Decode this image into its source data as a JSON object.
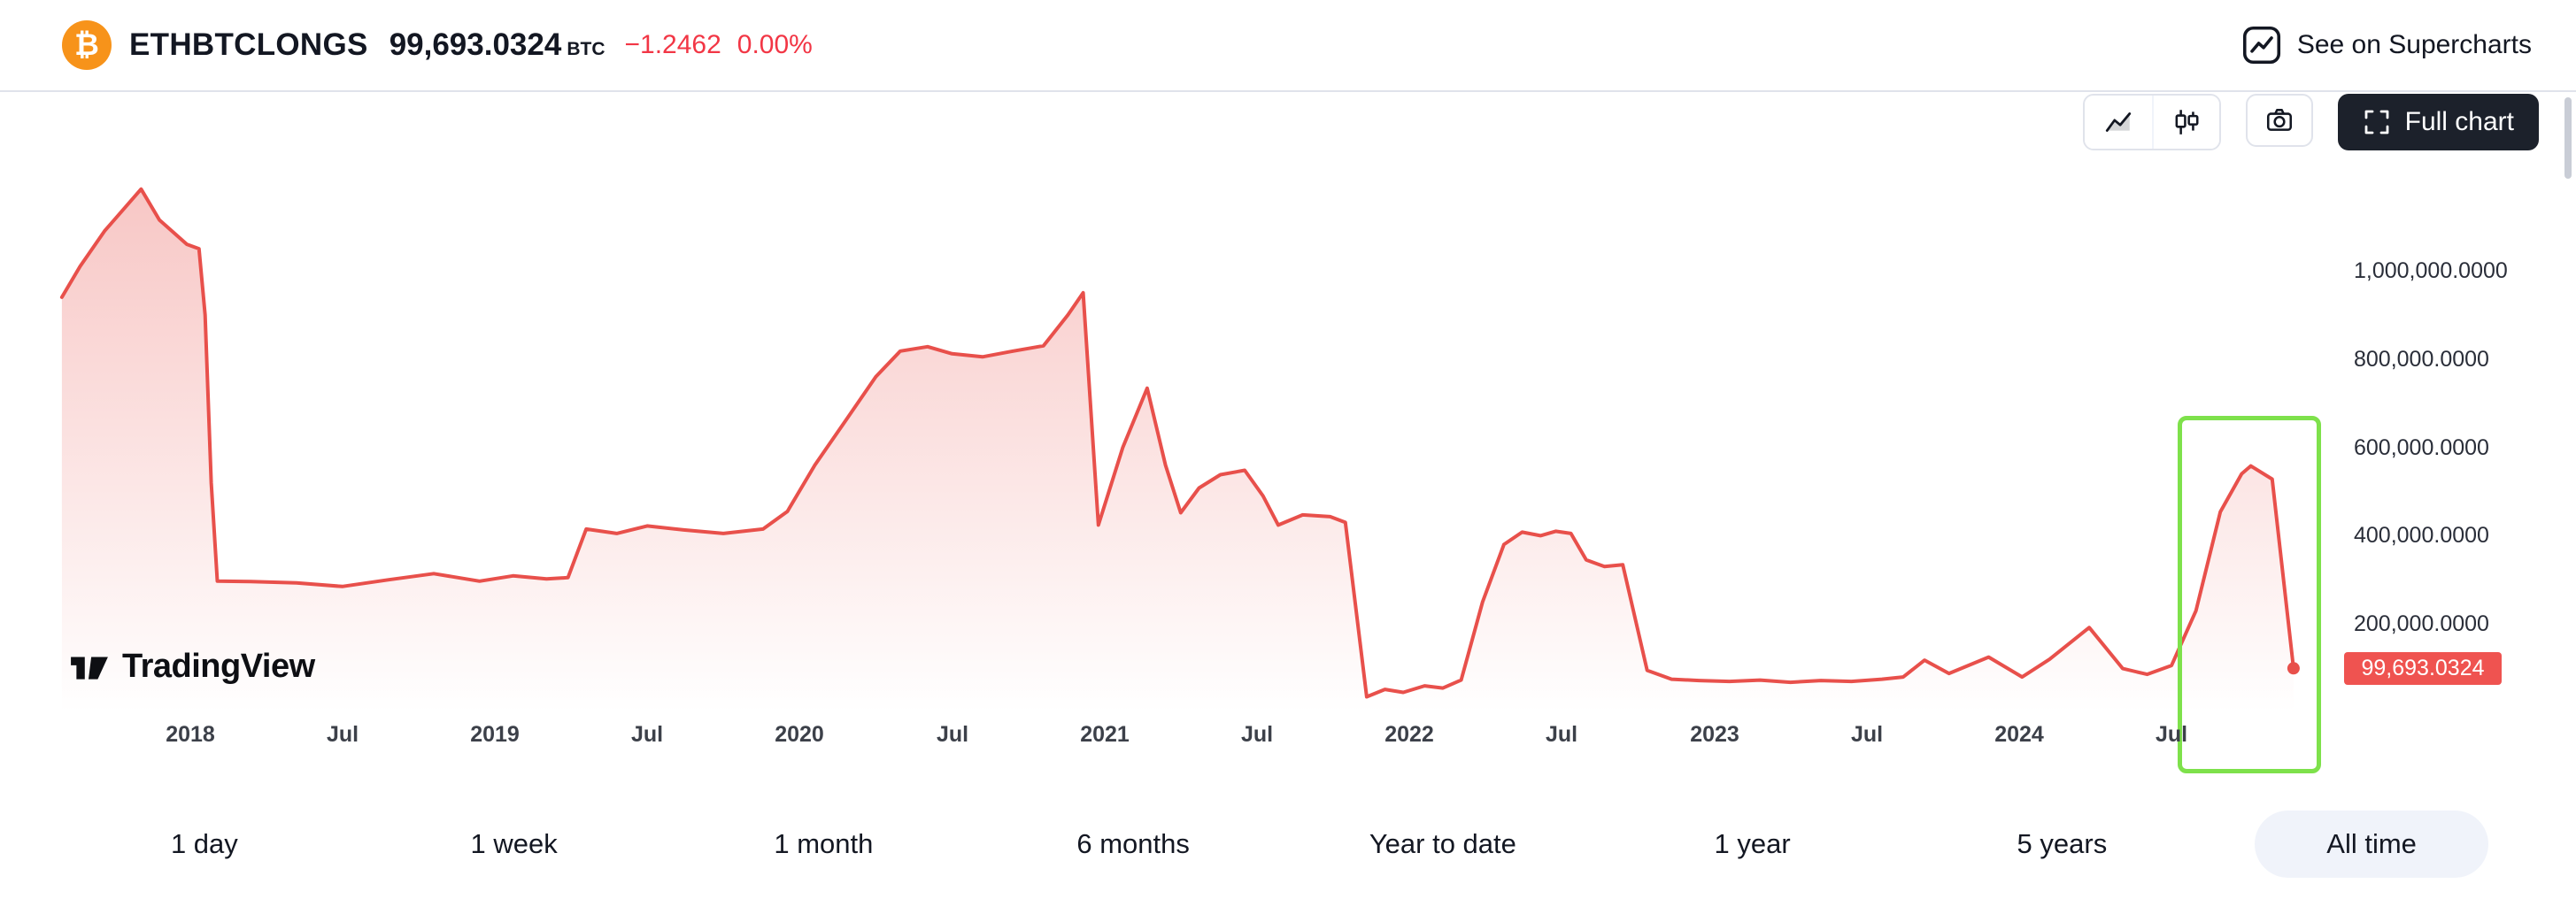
{
  "header": {
    "symbol": "ETHBTCLONGS",
    "price": "99,693.0324",
    "unit": "BTC",
    "change": "−1.2462",
    "change_pct": "0.00%",
    "supercharts_label": "See on Supercharts"
  },
  "toolbar": {
    "full_chart_label": "Full chart"
  },
  "watermark": {
    "label": "TradingView"
  },
  "colors": {
    "negative": "#f23645",
    "line": "#e8504b",
    "badge": "#ef5350",
    "highlight": "#7ee14b",
    "brand_orange": "#f7931a"
  },
  "chart_data": {
    "type": "area",
    "title": "ETHBTCLONGS long positions",
    "xlabel": "",
    "ylabel": "",
    "xlim": [
      2017.55,
      2025.05
    ],
    "ylim": [
      0,
      1400000
    ],
    "grid": false,
    "legend": "none",
    "last_price": 99693.0324,
    "last_price_label": "99,693.0324",
    "y_ticks": [
      {
        "value": 1000000,
        "label": "1,000,000.0000"
      },
      {
        "value": 800000,
        "label": "800,000.0000"
      },
      {
        "value": 600000,
        "label": "600,000.0000"
      },
      {
        "value": 400000,
        "label": "400,000.0000"
      },
      {
        "value": 200000,
        "label": "200,000.0000"
      }
    ],
    "x_ticks": [
      {
        "t": 2018.0,
        "label": "2018"
      },
      {
        "t": 2018.5,
        "label": "Jul"
      },
      {
        "t": 2019.0,
        "label": "2019"
      },
      {
        "t": 2019.5,
        "label": "Jul"
      },
      {
        "t": 2020.0,
        "label": "2020"
      },
      {
        "t": 2020.5,
        "label": "Jul"
      },
      {
        "t": 2021.0,
        "label": "2021"
      },
      {
        "t": 2021.5,
        "label": "Jul"
      },
      {
        "t": 2022.0,
        "label": "2022"
      },
      {
        "t": 2022.5,
        "label": "Jul"
      },
      {
        "t": 2023.0,
        "label": "2023"
      },
      {
        "t": 2023.5,
        "label": "Jul"
      },
      {
        "t": 2024.0,
        "label": "2024"
      },
      {
        "t": 2024.5,
        "label": "Jul"
      }
    ],
    "points": [
      [
        2017.58,
        940000
      ],
      [
        2017.64,
        1010000
      ],
      [
        2017.72,
        1090000
      ],
      [
        2017.84,
        1185000
      ],
      [
        2017.9,
        1115000
      ],
      [
        2017.99,
        1060000
      ],
      [
        2018.03,
        1050000
      ],
      [
        2018.05,
        900000
      ],
      [
        2018.07,
        520000
      ],
      [
        2018.09,
        297000
      ],
      [
        2018.2,
        296000
      ],
      [
        2018.35,
        293000
      ],
      [
        2018.5,
        285000
      ],
      [
        2018.65,
        300000
      ],
      [
        2018.8,
        314000
      ],
      [
        2018.95,
        297000
      ],
      [
        2019.06,
        309000
      ],
      [
        2019.17,
        302000
      ],
      [
        2019.24,
        305000
      ],
      [
        2019.3,
        415000
      ],
      [
        2019.4,
        405000
      ],
      [
        2019.5,
        422000
      ],
      [
        2019.62,
        413000
      ],
      [
        2019.75,
        405000
      ],
      [
        2019.88,
        415000
      ],
      [
        2019.96,
        455000
      ],
      [
        2020.05,
        560000
      ],
      [
        2020.15,
        660000
      ],
      [
        2020.25,
        760000
      ],
      [
        2020.33,
        818000
      ],
      [
        2020.42,
        828000
      ],
      [
        2020.5,
        812000
      ],
      [
        2020.6,
        805000
      ],
      [
        2020.7,
        818000
      ],
      [
        2020.8,
        830000
      ],
      [
        2020.88,
        900000
      ],
      [
        2020.93,
        950000
      ],
      [
        2020.98,
        424000
      ],
      [
        2021.06,
        600000
      ],
      [
        2021.14,
        734000
      ],
      [
        2021.2,
        560000
      ],
      [
        2021.25,
        452000
      ],
      [
        2021.31,
        508000
      ],
      [
        2021.38,
        538000
      ],
      [
        2021.46,
        548000
      ],
      [
        2021.52,
        490000
      ],
      [
        2021.57,
        424000
      ],
      [
        2021.65,
        447000
      ],
      [
        2021.74,
        443000
      ],
      [
        2021.79,
        430000
      ],
      [
        2021.86,
        35000
      ],
      [
        2021.92,
        52000
      ],
      [
        2021.98,
        45000
      ],
      [
        2022.05,
        60000
      ],
      [
        2022.11,
        55000
      ],
      [
        2022.17,
        73000
      ],
      [
        2022.24,
        250000
      ],
      [
        2022.31,
        380000
      ],
      [
        2022.37,
        408000
      ],
      [
        2022.43,
        400000
      ],
      [
        2022.48,
        410000
      ],
      [
        2022.53,
        405000
      ],
      [
        2022.58,
        345000
      ],
      [
        2022.64,
        330000
      ],
      [
        2022.7,
        334000
      ],
      [
        2022.78,
        95000
      ],
      [
        2022.86,
        75000
      ],
      [
        2022.95,
        72000
      ],
      [
        2023.05,
        70000
      ],
      [
        2023.15,
        73000
      ],
      [
        2023.25,
        68000
      ],
      [
        2023.35,
        72000
      ],
      [
        2023.45,
        70000
      ],
      [
        2023.55,
        75000
      ],
      [
        2023.62,
        80000
      ],
      [
        2023.69,
        118000
      ],
      [
        2023.77,
        88000
      ],
      [
        2023.9,
        125000
      ],
      [
        2024.01,
        80000
      ],
      [
        2024.1,
        120000
      ],
      [
        2024.23,
        192000
      ],
      [
        2024.34,
        99000
      ],
      [
        2024.42,
        86000
      ],
      [
        2024.5,
        106000
      ],
      [
        2024.58,
        230000
      ],
      [
        2024.66,
        454000
      ],
      [
        2024.73,
        540000
      ],
      [
        2024.76,
        558000
      ],
      [
        2024.83,
        528000
      ],
      [
        2024.9,
        99693
      ]
    ],
    "highlight": {
      "t_start": 2024.52,
      "t_end": 2024.99
    }
  },
  "ranges": {
    "items": [
      {
        "label": "1 day",
        "active": false
      },
      {
        "label": "1 week",
        "active": false
      },
      {
        "label": "1 month",
        "active": false
      },
      {
        "label": "6 months",
        "active": false
      },
      {
        "label": "Year to date",
        "active": false
      },
      {
        "label": "1 year",
        "active": false
      },
      {
        "label": "5 years",
        "active": false
      },
      {
        "label": "All time",
        "active": true
      }
    ]
  }
}
